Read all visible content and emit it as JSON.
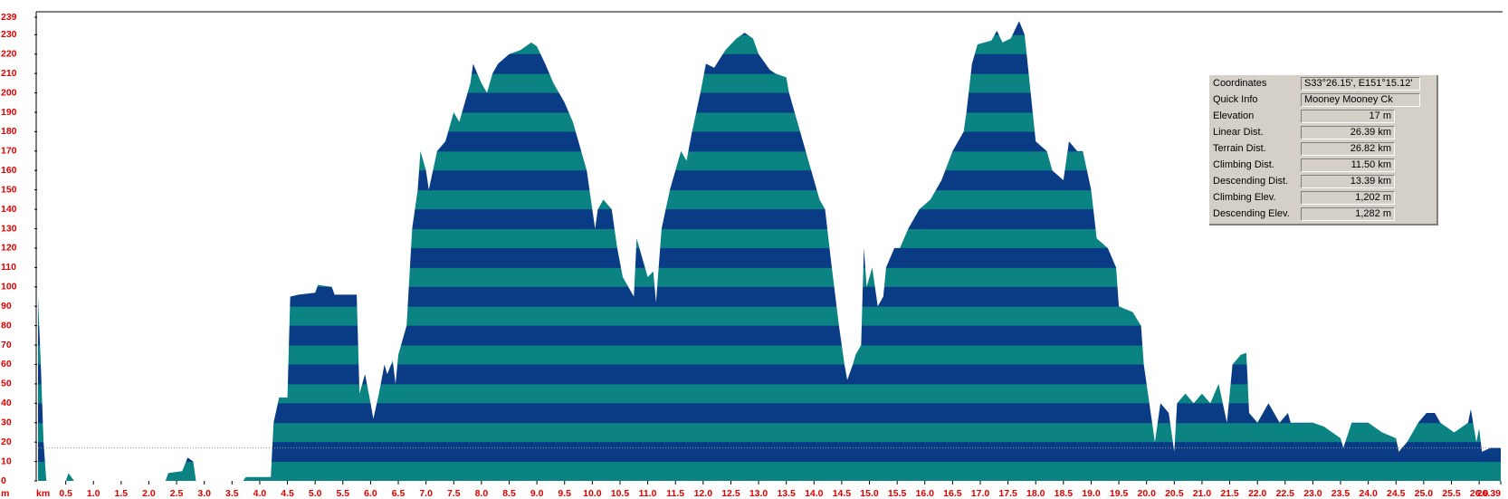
{
  "chart_data": {
    "type": "area",
    "x_label": "km",
    "y_label": "m",
    "x": [
      0,
      0.05,
      0.1,
      0.15,
      0.5,
      0.55,
      0.65,
      2.3,
      2.35,
      2.6,
      2.7,
      2.8,
      2.85,
      3.7,
      3.75,
      4.2,
      4.25,
      4.35,
      4.5,
      4.55,
      4.7,
      5.0,
      5.05,
      5.3,
      5.35,
      5.75,
      5.8,
      5.9,
      6.0,
      6.05,
      6.15,
      6.25,
      6.3,
      6.4,
      6.45,
      6.5,
      6.65,
      6.75,
      6.85,
      6.9,
      7.0,
      7.05,
      7.2,
      7.35,
      7.5,
      7.6,
      7.8,
      7.85,
      8.0,
      8.1,
      8.2,
      8.3,
      8.5,
      8.7,
      8.9,
      9.0,
      9.15,
      9.3,
      9.5,
      9.65,
      9.75,
      9.9,
      10.05,
      10.1,
      10.2,
      10.35,
      10.45,
      10.55,
      10.65,
      10.75,
      10.8,
      10.9,
      11.0,
      11.1,
      11.15,
      11.25,
      11.4,
      11.5,
      11.6,
      11.7,
      11.8,
      11.95,
      12.05,
      12.2,
      12.4,
      12.6,
      12.75,
      12.9,
      13.0,
      13.2,
      13.3,
      13.5,
      13.55,
      13.7,
      13.85,
      14.0,
      14.1,
      14.2,
      14.3,
      14.45,
      14.55,
      14.6,
      14.7,
      14.75,
      14.85,
      14.9,
      14.95,
      15.05,
      15.15,
      15.25,
      15.3,
      15.45,
      15.55,
      15.7,
      15.9,
      16.1,
      16.3,
      16.5,
      16.7,
      16.75,
      16.85,
      16.95,
      17.2,
      17.3,
      17.4,
      17.55,
      17.7,
      17.8,
      18.0,
      18.2,
      18.3,
      18.5,
      18.6,
      18.75,
      18.85,
      19.0,
      19.1,
      19.3,
      19.45,
      19.5,
      19.75,
      19.9,
      19.95,
      20.1,
      20.15,
      20.25,
      20.4,
      20.5,
      20.55,
      20.7,
      20.85,
      21.0,
      21.15,
      21.3,
      21.45,
      21.55,
      21.7,
      21.8,
      21.85,
      22.0,
      22.2,
      22.4,
      22.55,
      22.6,
      23.0,
      23.2,
      23.5,
      23.55,
      23.7,
      24.0,
      24.25,
      24.5,
      24.55,
      24.7,
      24.9,
      25.05,
      25.2,
      25.3,
      25.55,
      25.8,
      25.85,
      25.95,
      26.0,
      26.05,
      26.2,
      26.39
    ],
    "values": [
      95,
      60,
      20,
      0,
      0,
      4,
      0,
      0,
      4,
      5,
      12,
      10,
      0,
      0,
      2,
      2,
      30,
      43,
      43,
      95,
      96,
      97,
      101,
      100,
      96,
      96,
      45,
      55,
      40,
      32,
      45,
      60,
      55,
      62,
      50,
      65,
      80,
      130,
      150,
      170,
      160,
      150,
      170,
      175,
      190,
      185,
      205,
      215,
      205,
      200,
      210,
      215,
      220,
      222,
      226,
      224,
      215,
      205,
      195,
      185,
      175,
      160,
      130,
      140,
      145,
      140,
      120,
      105,
      100,
      95,
      125,
      115,
      105,
      108,
      92,
      130,
      150,
      160,
      170,
      165,
      180,
      200,
      215,
      213,
      222,
      228,
      231,
      228,
      220,
      212,
      210,
      208,
      200,
      185,
      170,
      155,
      145,
      140,
      115,
      80,
      60,
      52,
      60,
      65,
      70,
      120,
      100,
      110,
      90,
      95,
      110,
      120,
      120,
      130,
      140,
      145,
      155,
      170,
      180,
      190,
      215,
      225,
      227,
      232,
      226,
      228,
      237,
      230,
      175,
      170,
      160,
      155,
      175,
      170,
      170,
      150,
      125,
      120,
      110,
      90,
      87,
      80,
      60,
      30,
      20,
      40,
      35,
      15,
      40,
      45,
      40,
      45,
      40,
      50,
      30,
      60,
      65,
      66,
      35,
      30,
      40,
      30,
      35,
      30,
      30,
      28,
      22,
      17,
      30,
      30,
      25,
      22,
      15,
      20,
      30,
      35,
      35,
      30,
      25,
      30,
      37,
      20,
      27,
      15,
      17,
      17
    ],
    "band_colors": [
      "#0b8383",
      "#0a3c85"
    ],
    "band_step": 10,
    "reference_line": 17,
    "xlim": [
      0,
      26.39
    ],
    "ylim": [
      0,
      239
    ],
    "xticks": [
      0.5,
      {
        "value": 1,
        "label": "1.0"
      },
      1.5,
      {
        "value": 2,
        "label": "2.0"
      },
      2.5,
      {
        "value": 3,
        "label": "3.0"
      },
      3.5,
      {
        "value": 4,
        "label": "4.0"
      },
      4.5,
      {
        "value": 5,
        "label": "5.0"
      },
      5.5,
      {
        "value": 6,
        "label": "6.0"
      },
      6.5,
      {
        "value": 7,
        "label": "7.0"
      },
      7.5,
      {
        "value": 8,
        "label": "8.0"
      },
      8.5,
      {
        "value": 9,
        "label": "9.0"
      },
      9.5,
      {
        "value": 10,
        "label": "10.0"
      },
      10.5,
      {
        "value": 11,
        "label": "11.0"
      },
      11.5,
      {
        "value": 12,
        "label": "12.0"
      },
      12.5,
      {
        "value": 13,
        "label": "13.0"
      },
      13.5,
      {
        "value": 14,
        "label": "14.0"
      },
      14.5,
      {
        "value": 15,
        "label": "15.0"
      },
      15.5,
      {
        "value": 16,
        "label": "16.0"
      },
      16.5,
      {
        "value": 17,
        "label": "17.0"
      },
      17.5,
      {
        "value": 18,
        "label": "18.0"
      },
      18.5,
      {
        "value": 19,
        "label": "19.0"
      },
      19.5,
      {
        "value": 20,
        "label": "20.0"
      },
      20.5,
      {
        "value": 21,
        "label": "21.0"
      },
      21.5,
      {
        "value": 22,
        "label": "22.0"
      },
      22.5,
      {
        "value": 23,
        "label": "23.0"
      },
      23.5,
      {
        "value": 24,
        "label": "24.0"
      },
      24.5,
      {
        "value": 25,
        "label": "25.0"
      },
      25.5,
      {
        "value": 26,
        "label": "26.0"
      },
      26.39
    ],
    "yticks": [
      0,
      10,
      20,
      30,
      40,
      50,
      60,
      70,
      80,
      90,
      100,
      110,
      120,
      130,
      140,
      150,
      160,
      170,
      180,
      190,
      200,
      210,
      220,
      230,
      239
    ]
  },
  "info_panel": {
    "rows": [
      {
        "label": "Coordinates",
        "value": "S33°26.15', E151°15.12'"
      },
      {
        "label": "Quick Info",
        "value": "Mooney Mooney Ck"
      },
      {
        "label": "Elevation",
        "value": "17 m"
      },
      {
        "label": "Linear Dist.",
        "value": "26.39 km"
      },
      {
        "label": "Terrain Dist.",
        "value": "26.82 km"
      },
      {
        "label": "Climbing Dist.",
        "value": "11.50 km"
      },
      {
        "label": "Descending Dist.",
        "value": "13.39 km"
      },
      {
        "label": "Climbing Elev.",
        "value": "1,202 m"
      },
      {
        "label": "Descending Elev.",
        "value": "1,282 m"
      }
    ]
  }
}
